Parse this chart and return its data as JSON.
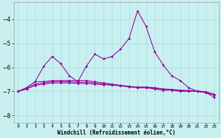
{
  "x": [
    0,
    1,
    2,
    3,
    4,
    5,
    6,
    7,
    8,
    9,
    10,
    11,
    12,
    13,
    14,
    15,
    16,
    17,
    18,
    19,
    20,
    21,
    22,
    23
  ],
  "line_zigzag": [
    -7.0,
    -6.85,
    -6.6,
    -5.95,
    -5.55,
    -5.85,
    -6.35,
    -6.6,
    -5.95,
    -5.45,
    -5.65,
    -5.55,
    -5.25,
    -4.8,
    -3.65,
    -4.3,
    -5.35,
    -5.9,
    -6.35,
    -6.55,
    -6.85,
    -7.0,
    -7.05,
    -7.25
  ],
  "line_flat1": [
    -7.0,
    -6.85,
    -6.6,
    -6.6,
    -6.55,
    -6.55,
    -6.55,
    -6.55,
    -6.55,
    -6.6,
    -6.65,
    -6.7,
    -6.75,
    -6.8,
    -6.85,
    -6.85,
    -6.9,
    -6.95,
    -6.95,
    -7.0,
    -7.0,
    -7.0,
    -7.05,
    -7.15
  ],
  "line_flat2": [
    -7.0,
    -6.9,
    -6.7,
    -6.65,
    -6.6,
    -6.6,
    -6.6,
    -6.62,
    -6.62,
    -6.65,
    -6.7,
    -6.72,
    -6.75,
    -6.8,
    -6.82,
    -6.82,
    -6.85,
    -6.9,
    -6.92,
    -6.95,
    -6.97,
    -6.98,
    -7.02,
    -7.12
  ],
  "line_flat3": [
    -7.0,
    -6.9,
    -6.75,
    -6.7,
    -6.65,
    -6.65,
    -6.65,
    -6.67,
    -6.67,
    -6.7,
    -6.72,
    -6.74,
    -6.77,
    -6.82,
    -6.84,
    -6.84,
    -6.87,
    -6.92,
    -6.94,
    -6.97,
    -6.99,
    -7.0,
    -7.04,
    -7.14
  ],
  "bg_color": "#c8f0f0",
  "grid_color": "#b0dede",
  "line_color": "#990099",
  "xlabel": "Windchill (Refroidissement éolien,°C)",
  "ylim": [
    -8.3,
    -3.3
  ],
  "yticks": [
    -8,
    -7,
    -6,
    -5,
    -4
  ],
  "xlim": [
    -0.5,
    23.5
  ],
  "figwidth": 3.2,
  "figheight": 2.0,
  "dpi": 100
}
